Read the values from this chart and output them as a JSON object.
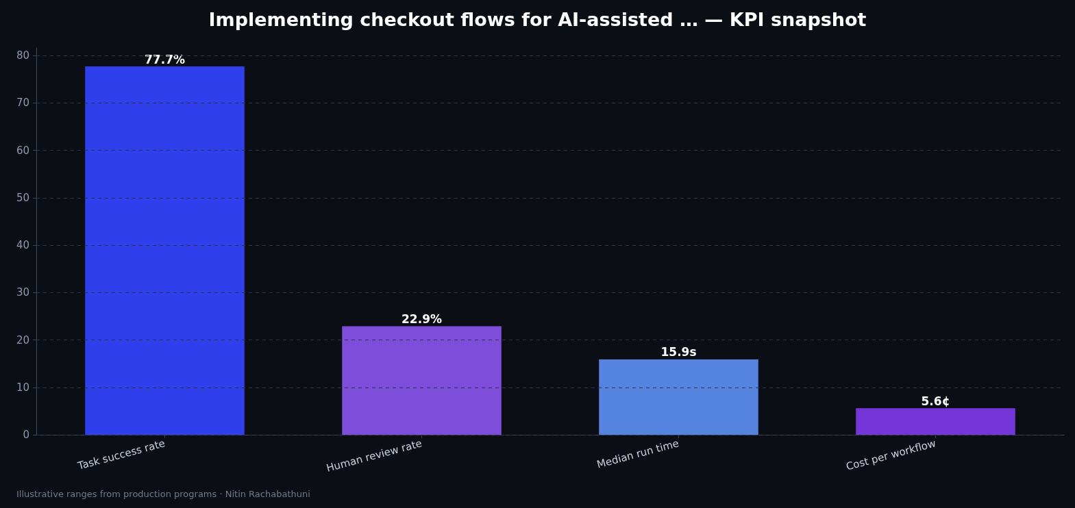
{
  "chart_data": {
    "type": "bar",
    "title": "Implementing checkout flows for AI-assisted … — KPI snapshot",
    "categories": [
      "Task success rate",
      "Human review rate",
      "Median run time",
      "Cost per workflow"
    ],
    "values": [
      77.7,
      22.9,
      15.9,
      5.6
    ],
    "colors": [
      "#2e3feb",
      "#7e4edb",
      "#5584e0",
      "#7436d9"
    ],
    "value_labels": [
      "77.7%",
      "22.9%",
      "15.9s",
      "5.6¢"
    ],
    "ylim": [
      0,
      81.6
    ],
    "yticks": [
      0,
      10,
      20,
      30,
      40,
      50,
      60,
      70,
      80
    ],
    "grid": "y",
    "annotations": [
      "Illustrative ranges from production programs · Nitin Rachabathuni"
    ]
  }
}
